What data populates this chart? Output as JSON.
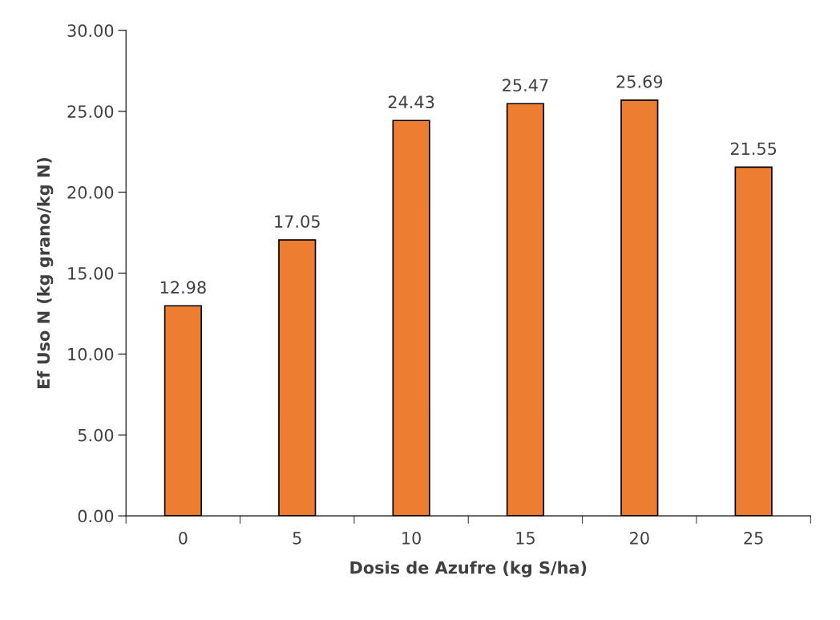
{
  "chart_data": {
    "type": "bar",
    "xlabel": "Dosis de Azufre (kg S/ha)",
    "ylabel": "Ef Uso N (kg grano/kg N)",
    "categories": [
      "0",
      "5",
      "10",
      "15",
      "20",
      "25"
    ],
    "values": [
      12.98,
      17.05,
      24.43,
      25.47,
      25.69,
      21.55
    ],
    "value_labels": [
      "12.98",
      "17.05",
      "24.43",
      "25.47",
      "25.69",
      "21.55"
    ],
    "color": "#ed7d31",
    "ylim": [
      0,
      30
    ],
    "yticks": [
      {
        "value": 0,
        "label": "0.00"
      },
      {
        "value": 5,
        "label": "5.00"
      },
      {
        "value": 10,
        "label": "10.00"
      },
      {
        "value": 15,
        "label": "15.00"
      },
      {
        "value": 20,
        "label": "20.00"
      },
      {
        "value": 25,
        "label": "25.00"
      },
      {
        "value": 30,
        "label": "30.00"
      }
    ],
    "grid": false,
    "legend": false
  }
}
